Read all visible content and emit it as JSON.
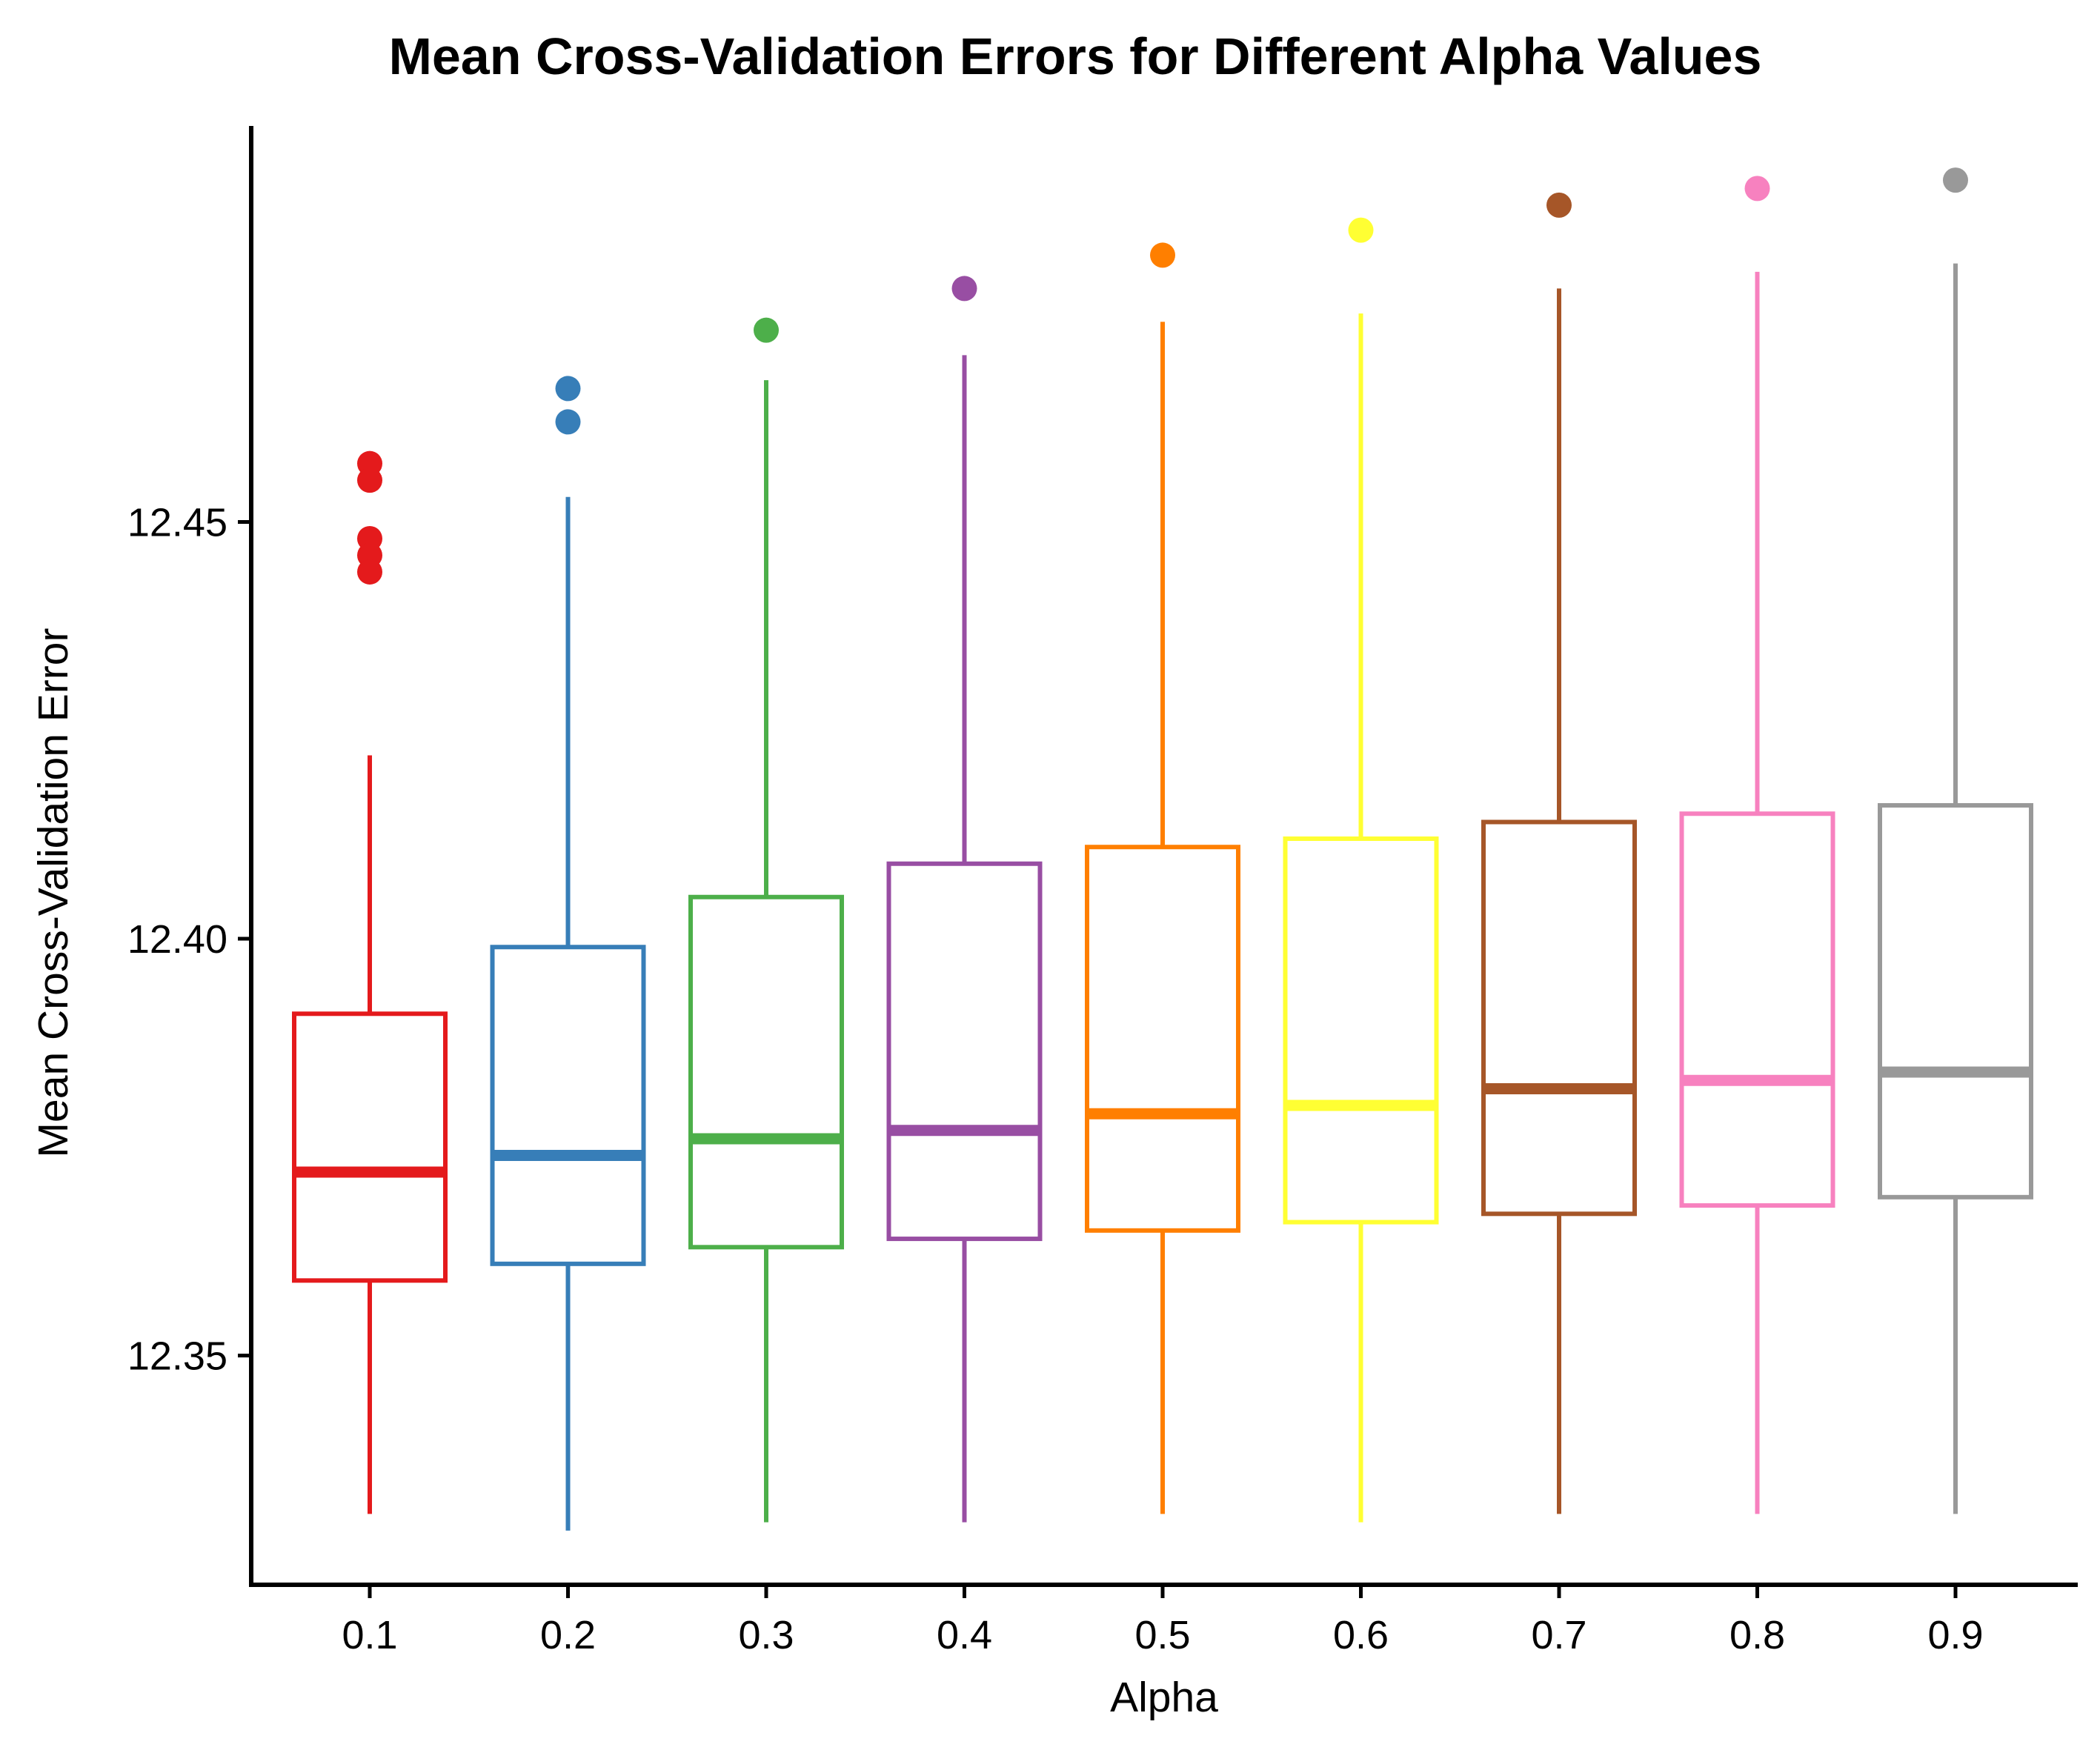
{
  "chart_data": {
    "type": "boxplot",
    "title": "Mean Cross-Validation Errors for Different Alpha Values",
    "xlabel": "Alpha",
    "ylabel": "Mean Cross-Validation Error",
    "ylim": [
      12.3225,
      12.4975
    ],
    "yticks": [
      "12.35",
      "12.40",
      "12.45"
    ],
    "ytick_values": [
      12.35,
      12.4,
      12.45
    ],
    "grid": false,
    "legend": "none",
    "categories": [
      "0.1",
      "0.2",
      "0.3",
      "0.4",
      "0.5",
      "0.6",
      "0.7",
      "0.8",
      "0.9"
    ],
    "boxes": [
      {
        "x": "0.1",
        "color": "#E41A1C",
        "whisker_low": 12.331,
        "q1": 12.359,
        "median": 12.372,
        "q3": 12.391,
        "whisker_high": 12.422,
        "outliers": [
          12.457,
          12.455,
          12.448,
          12.446,
          12.444
        ]
      },
      {
        "x": "0.2",
        "color": "#377EB8",
        "whisker_low": 12.329,
        "q1": 12.361,
        "median": 12.374,
        "q3": 12.399,
        "whisker_high": 12.453,
        "outliers": [
          12.466,
          12.462
        ]
      },
      {
        "x": "0.3",
        "color": "#4DAF4A",
        "whisker_low": 12.33,
        "q1": 12.363,
        "median": 12.376,
        "q3": 12.405,
        "whisker_high": 12.467,
        "outliers": [
          12.473
        ]
      },
      {
        "x": "0.4",
        "color": "#984EA3",
        "whisker_low": 12.33,
        "q1": 12.364,
        "median": 12.377,
        "q3": 12.409,
        "whisker_high": 12.47,
        "outliers": [
          12.478
        ]
      },
      {
        "x": "0.5",
        "color": "#FF7F00",
        "whisker_low": 12.331,
        "q1": 12.365,
        "median": 12.379,
        "q3": 12.411,
        "whisker_high": 12.474,
        "outliers": [
          12.482
        ]
      },
      {
        "x": "0.6",
        "color": "#FFFF33",
        "whisker_low": 12.33,
        "q1": 12.366,
        "median": 12.38,
        "q3": 12.412,
        "whisker_high": 12.475,
        "outliers": [
          12.485
        ]
      },
      {
        "x": "0.7",
        "color": "#A65628",
        "whisker_low": 12.331,
        "q1": 12.367,
        "median": 12.382,
        "q3": 12.414,
        "whisker_high": 12.478,
        "outliers": [
          12.488
        ]
      },
      {
        "x": "0.8",
        "color": "#F781BF",
        "whisker_low": 12.331,
        "q1": 12.368,
        "median": 12.383,
        "q3": 12.415,
        "whisker_high": 12.48,
        "outliers": [
          12.49
        ]
      },
      {
        "x": "0.9",
        "color": "#999999",
        "whisker_low": 12.331,
        "q1": 12.369,
        "median": 12.384,
        "q3": 12.416,
        "whisker_high": 12.481,
        "outliers": [
          12.491
        ]
      }
    ]
  }
}
